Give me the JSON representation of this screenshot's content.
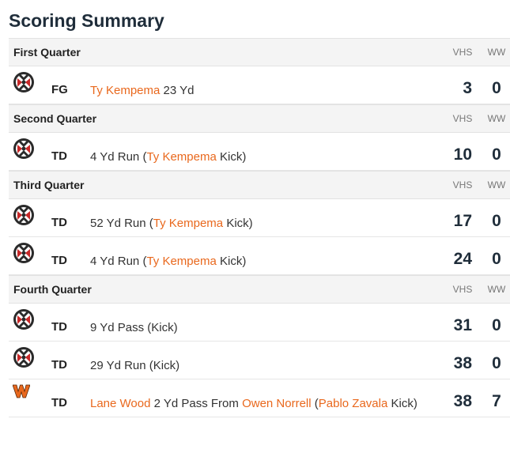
{
  "title": "Scoring Summary",
  "teams": {
    "home": "VHS",
    "away": "WW"
  },
  "colors": {
    "link": "#e9681d",
    "heading": "#1f2d3a"
  },
  "quarters": [
    {
      "name": "First Quarter",
      "plays": [
        {
          "team": "vhs",
          "type": "FG",
          "parts": [
            {
              "t": "Ty Kempema",
              "hl": true
            },
            {
              "t": " 23 Yd",
              "hl": false
            }
          ],
          "vhs": "3",
          "ww": "0"
        }
      ]
    },
    {
      "name": "Second Quarter",
      "plays": [
        {
          "team": "vhs",
          "type": "TD",
          "parts": [
            {
              "t": "4 Yd Run (",
              "hl": false
            },
            {
              "t": "Ty Kempema",
              "hl": true
            },
            {
              "t": " Kick)",
              "hl": false
            }
          ],
          "vhs": "10",
          "ww": "0"
        }
      ]
    },
    {
      "name": "Third Quarter",
      "plays": [
        {
          "team": "vhs",
          "type": "TD",
          "parts": [
            {
              "t": "52 Yd Run (",
              "hl": false
            },
            {
              "t": "Ty Kempema",
              "hl": true
            },
            {
              "t": " Kick)",
              "hl": false
            }
          ],
          "vhs": "17",
          "ww": "0"
        },
        {
          "team": "vhs",
          "type": "TD",
          "parts": [
            {
              "t": "4 Yd Run (",
              "hl": false
            },
            {
              "t": "Ty Kempema",
              "hl": true
            },
            {
              "t": " Kick)",
              "hl": false
            }
          ],
          "vhs": "24",
          "ww": "0"
        }
      ]
    },
    {
      "name": "Fourth Quarter",
      "plays": [
        {
          "team": "vhs",
          "type": "TD",
          "parts": [
            {
              "t": "9 Yd Pass (Kick)",
              "hl": false
            }
          ],
          "vhs": "31",
          "ww": "0"
        },
        {
          "team": "vhs",
          "type": "TD",
          "parts": [
            {
              "t": "29 Yd Run (Kick)",
              "hl": false
            }
          ],
          "vhs": "38",
          "ww": "0"
        },
        {
          "team": "ww",
          "type": "TD",
          "parts": [
            {
              "t": "Lane Wood",
              "hl": true
            },
            {
              "t": " 2 Yd Pass From ",
              "hl": false
            },
            {
              "t": "Owen Norrell",
              "hl": true
            },
            {
              "t": " (",
              "hl": false
            },
            {
              "t": "Pablo Zavala",
              "hl": true
            },
            {
              "t": " Kick)",
              "hl": false
            }
          ],
          "vhs": "38",
          "ww": "7"
        }
      ]
    }
  ]
}
